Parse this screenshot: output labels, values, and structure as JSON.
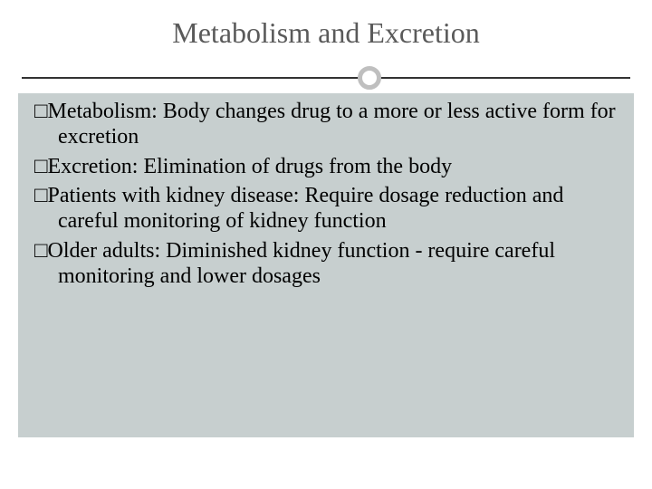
{
  "slide": {
    "title": "Metabolism and Excretion",
    "background_color": "#ffffff",
    "content_background": "#c7cfcf",
    "title_color": "#5a5a5a",
    "text_color": "#000000",
    "divider_line_color": "#333333",
    "circle_border_color": "#bfbfbf",
    "title_fontsize": 32,
    "body_fontsize": 24,
    "bullets": [
      {
        "marker": "□",
        "text": "Metabolism: Body changes drug to a more or less active form for excretion"
      },
      {
        "marker": "□",
        "text": "Excretion: Elimination of drugs from the body"
      },
      {
        "marker": "□",
        "text": "Patients with kidney disease: Require dosage reduction and careful monitoring of kidney function"
      },
      {
        "marker": "□",
        "text": "Older adults: Diminished kidney function - require careful monitoring and lower dosages"
      }
    ]
  }
}
